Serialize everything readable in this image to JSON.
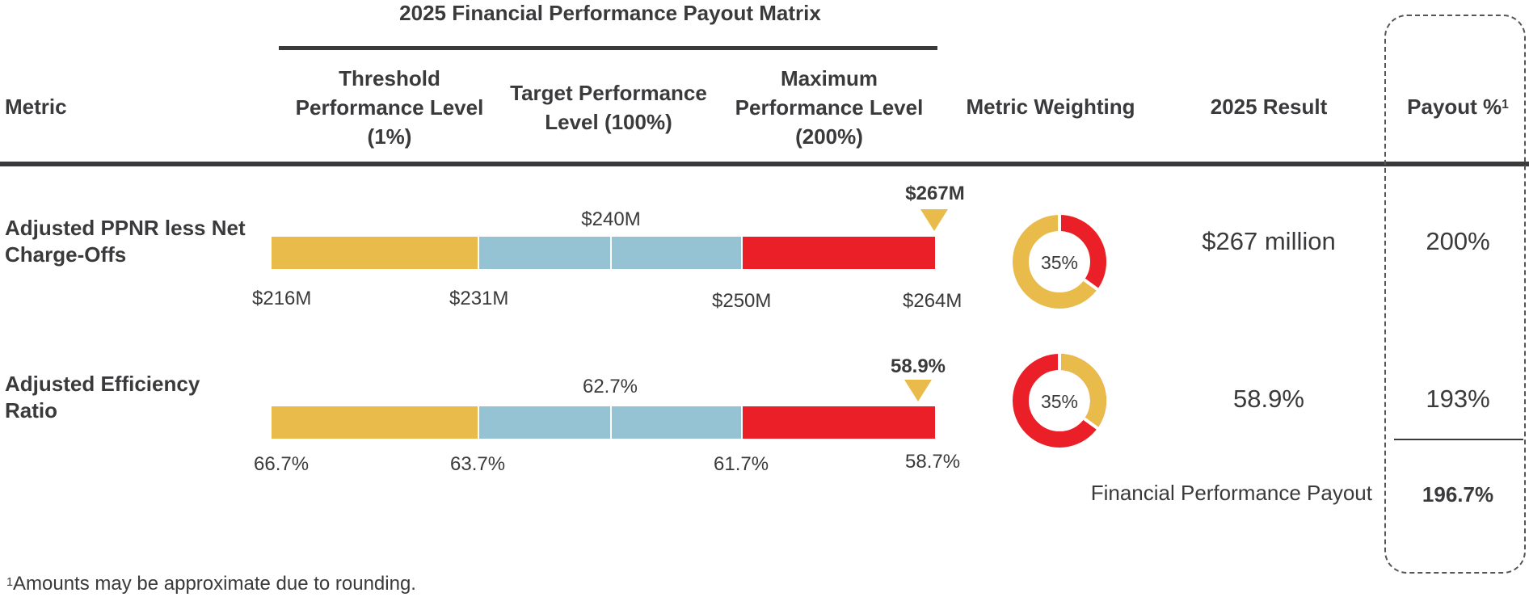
{
  "title": "2025 Financial Performance Payout Matrix",
  "headers": {
    "metric": "Metric",
    "threshold": "Threshold Performance Level (1%)",
    "target": "Target Performance Level (100%)",
    "maximum": "Maximum Performance Level (200%)",
    "weighting": "Metric Weighting",
    "result": "2025 Result",
    "payout": "Payout %",
    "payout_sup": "1"
  },
  "colors": {
    "threshold": "#E8BB4A",
    "target": "#95C3D4",
    "maximum": "#EB1F27",
    "marker": "#E8BB4A",
    "text": "#3a3a3c"
  },
  "rows": [
    {
      "metric": "Adjusted PPNR less Net Charge-Offs",
      "threshold_value": "$216M",
      "threshold_end": "$231M",
      "target_value": "$240M",
      "target_end": "$250M",
      "maximum_value": "$264M",
      "actual_value": "$267M",
      "weighting": "35%",
      "weighting_fraction": 0.35,
      "result": "$267 million",
      "payout": "200%"
    },
    {
      "metric": "Adjusted Efficiency Ratio",
      "threshold_value": "66.7%",
      "threshold_end": "63.7%",
      "target_value": "62.7%",
      "target_end": "61.7%",
      "maximum_value": "58.7%",
      "actual_value": "58.9%",
      "weighting": "35%",
      "weighting_fraction": 0.35,
      "result": "58.9%",
      "payout": "193%"
    }
  ],
  "summary": {
    "label": "Financial Performance Payout",
    "value": "196.7%"
  },
  "footnote": {
    "sup": "1",
    "text": "Amounts may be approximate due to rounding."
  }
}
